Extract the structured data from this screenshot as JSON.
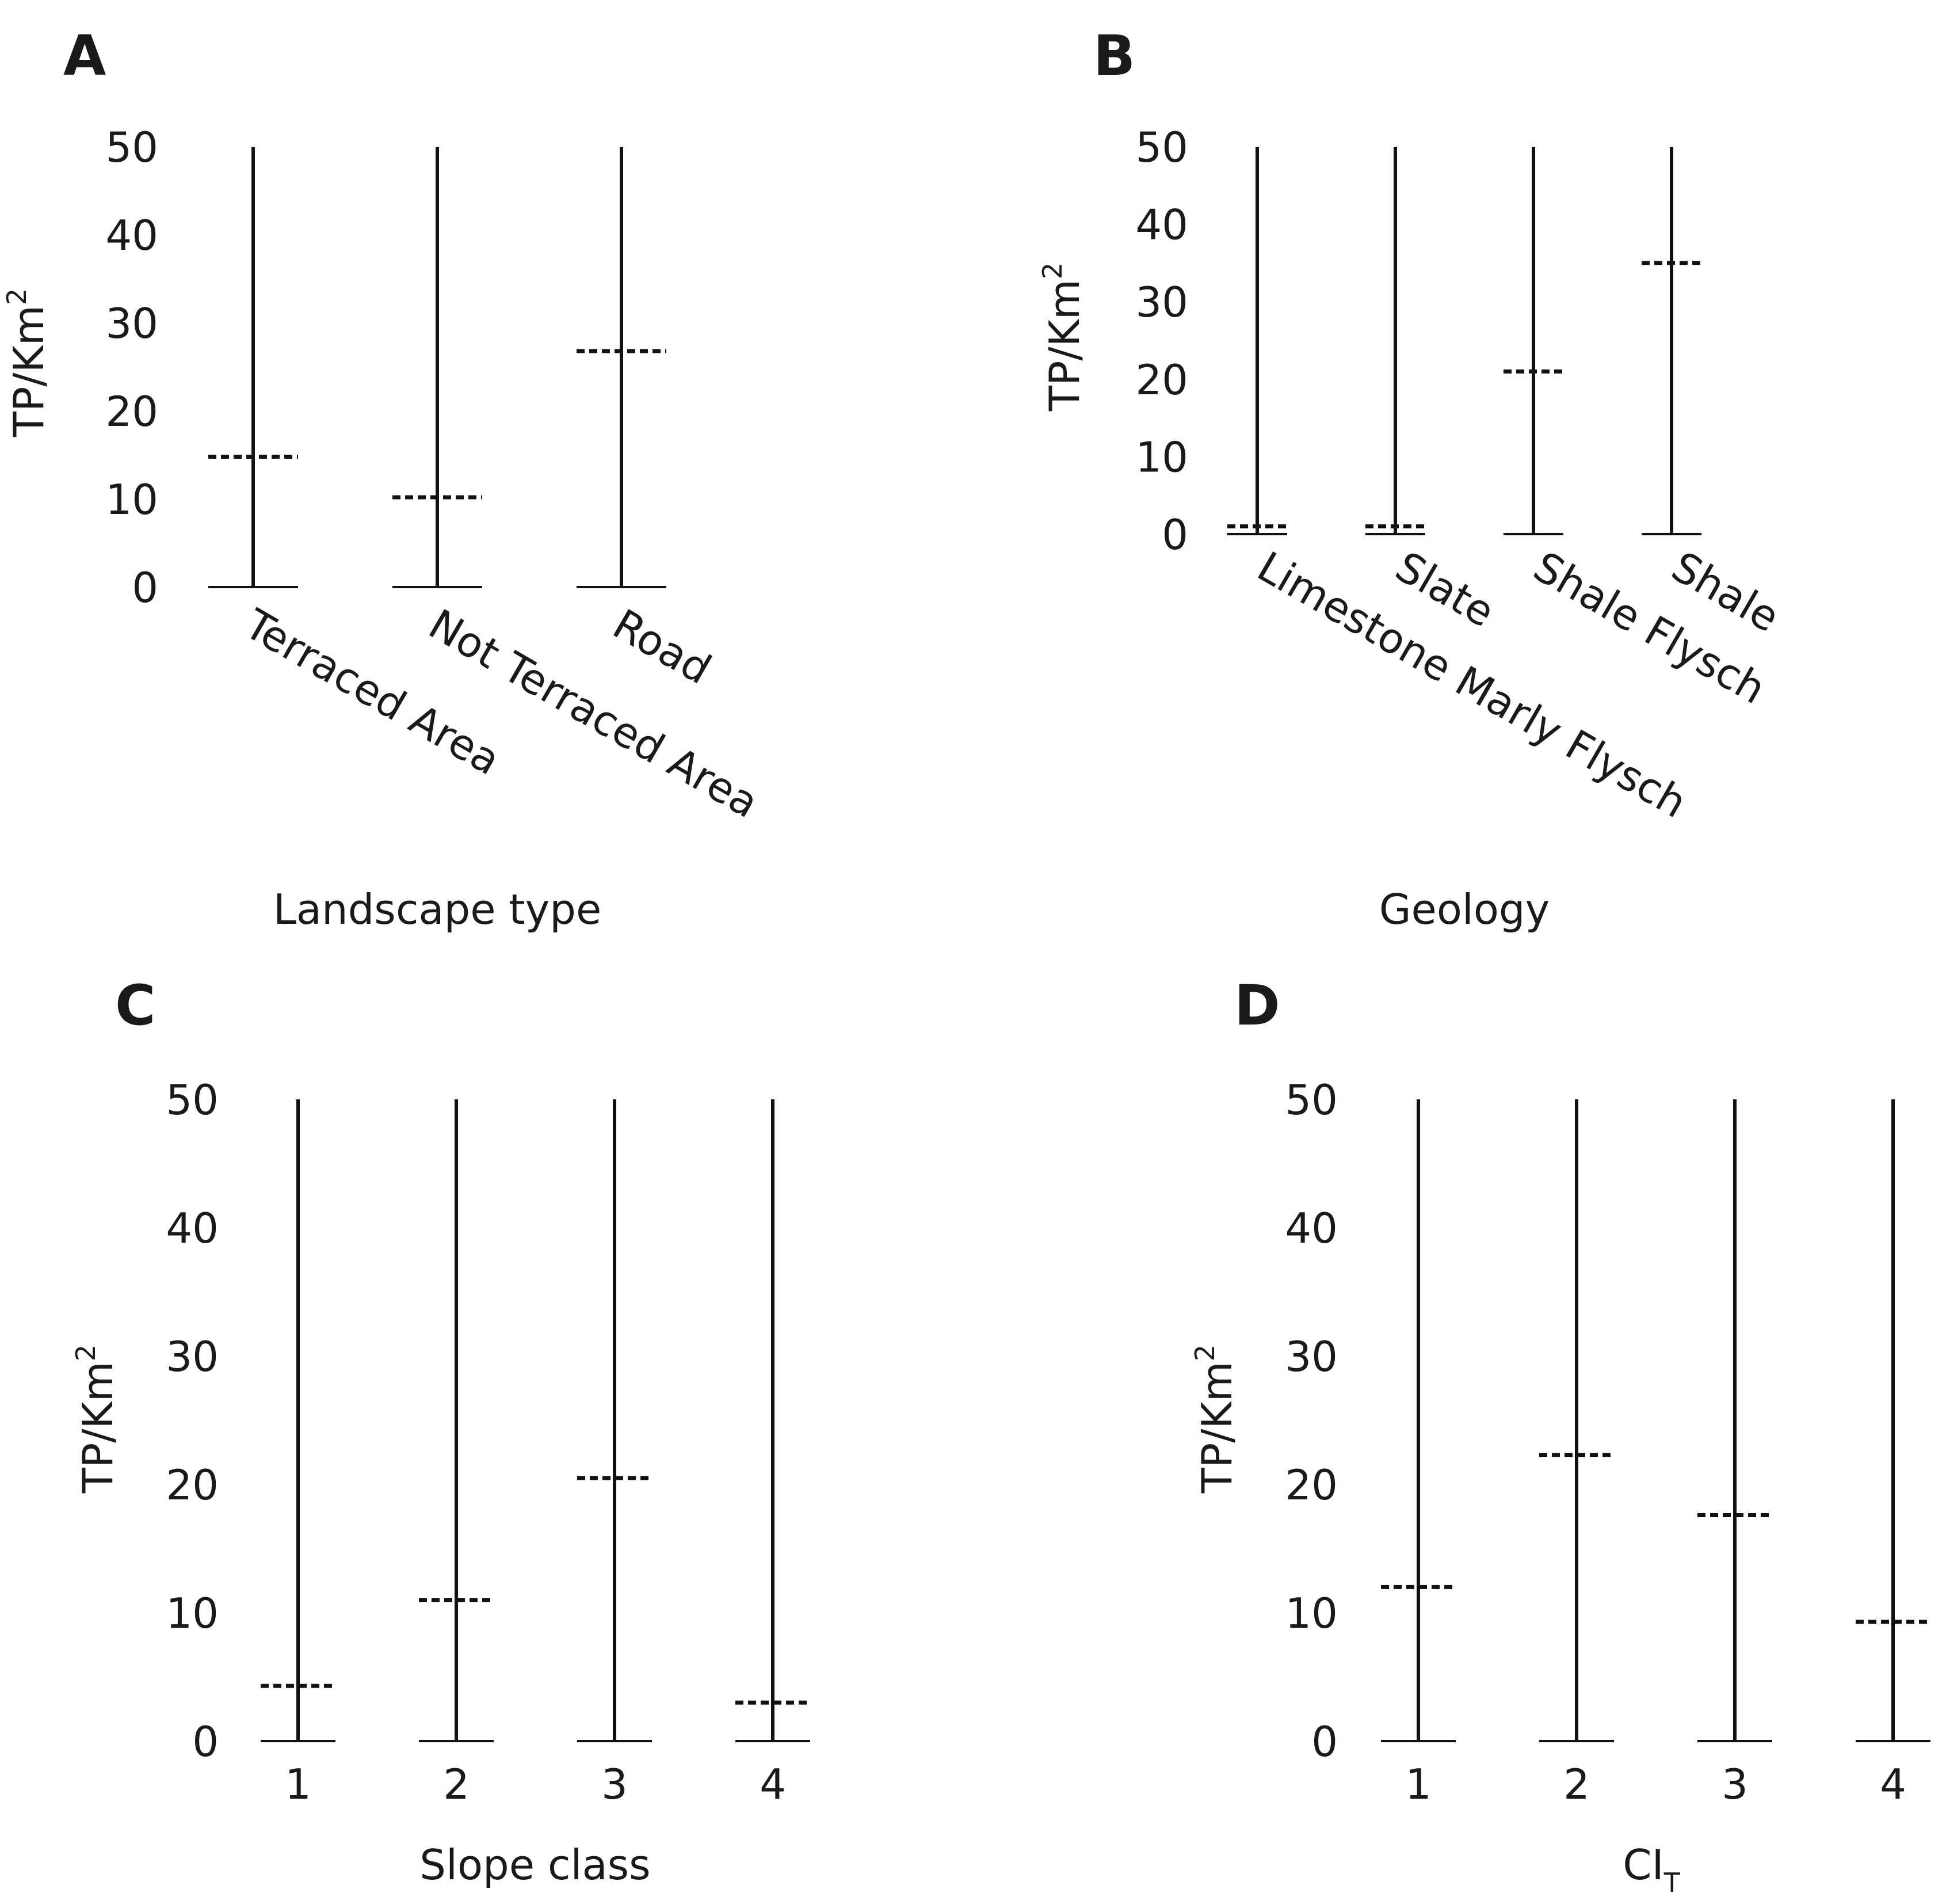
{
  "chart_data": [
    {
      "type": "bar",
      "panel": "A",
      "xlabel": "Landscape type",
      "ylabel": "TP/Km",
      "ylabel_sup": "2",
      "ylim": [
        0,
        50
      ],
      "yticks": [
        0,
        10,
        20,
        30,
        40,
        50
      ],
      "categories": [
        "Terraced Area",
        "Not Terraced Area",
        "Road"
      ],
      "values": [
        14.8,
        10.2,
        26.8
      ],
      "rotated_labels": true
    },
    {
      "type": "bar",
      "panel": "B",
      "xlabel": "Geology",
      "ylabel": "TP/Km",
      "ylabel_sup": "2",
      "ylim": [
        0,
        50
      ],
      "yticks": [
        0,
        10,
        20,
        30,
        40,
        50
      ],
      "categories": [
        "Limestone Marly Flysch",
        "Slate",
        "Shale Flysch",
        "Shale"
      ],
      "values": [
        1.0,
        1.0,
        21.0,
        35.0
      ],
      "rotated_labels": true
    },
    {
      "type": "bar",
      "panel": "C",
      "xlabel": "Slope class",
      "ylabel": "TP/Km",
      "ylabel_sup": "2",
      "ylim": [
        0,
        50
      ],
      "yticks": [
        0,
        10,
        20,
        30,
        40,
        50
      ],
      "categories": [
        "1",
        "2",
        "3",
        "4"
      ],
      "values": [
        4.3,
        11.0,
        20.5,
        3.0
      ],
      "rotated_labels": false
    },
    {
      "type": "bar",
      "panel": "D",
      "xlabel": "CI",
      "xlabel_sub": "T",
      "ylabel": "TP/Km",
      "ylabel_sup": "2",
      "ylim": [
        0,
        50
      ],
      "yticks": [
        0,
        10,
        20,
        30,
        40,
        50
      ],
      "categories": [
        "1",
        "2",
        "3",
        "4"
      ],
      "values": [
        12.0,
        22.3,
        17.6,
        9.3
      ],
      "rotated_labels": false
    }
  ]
}
